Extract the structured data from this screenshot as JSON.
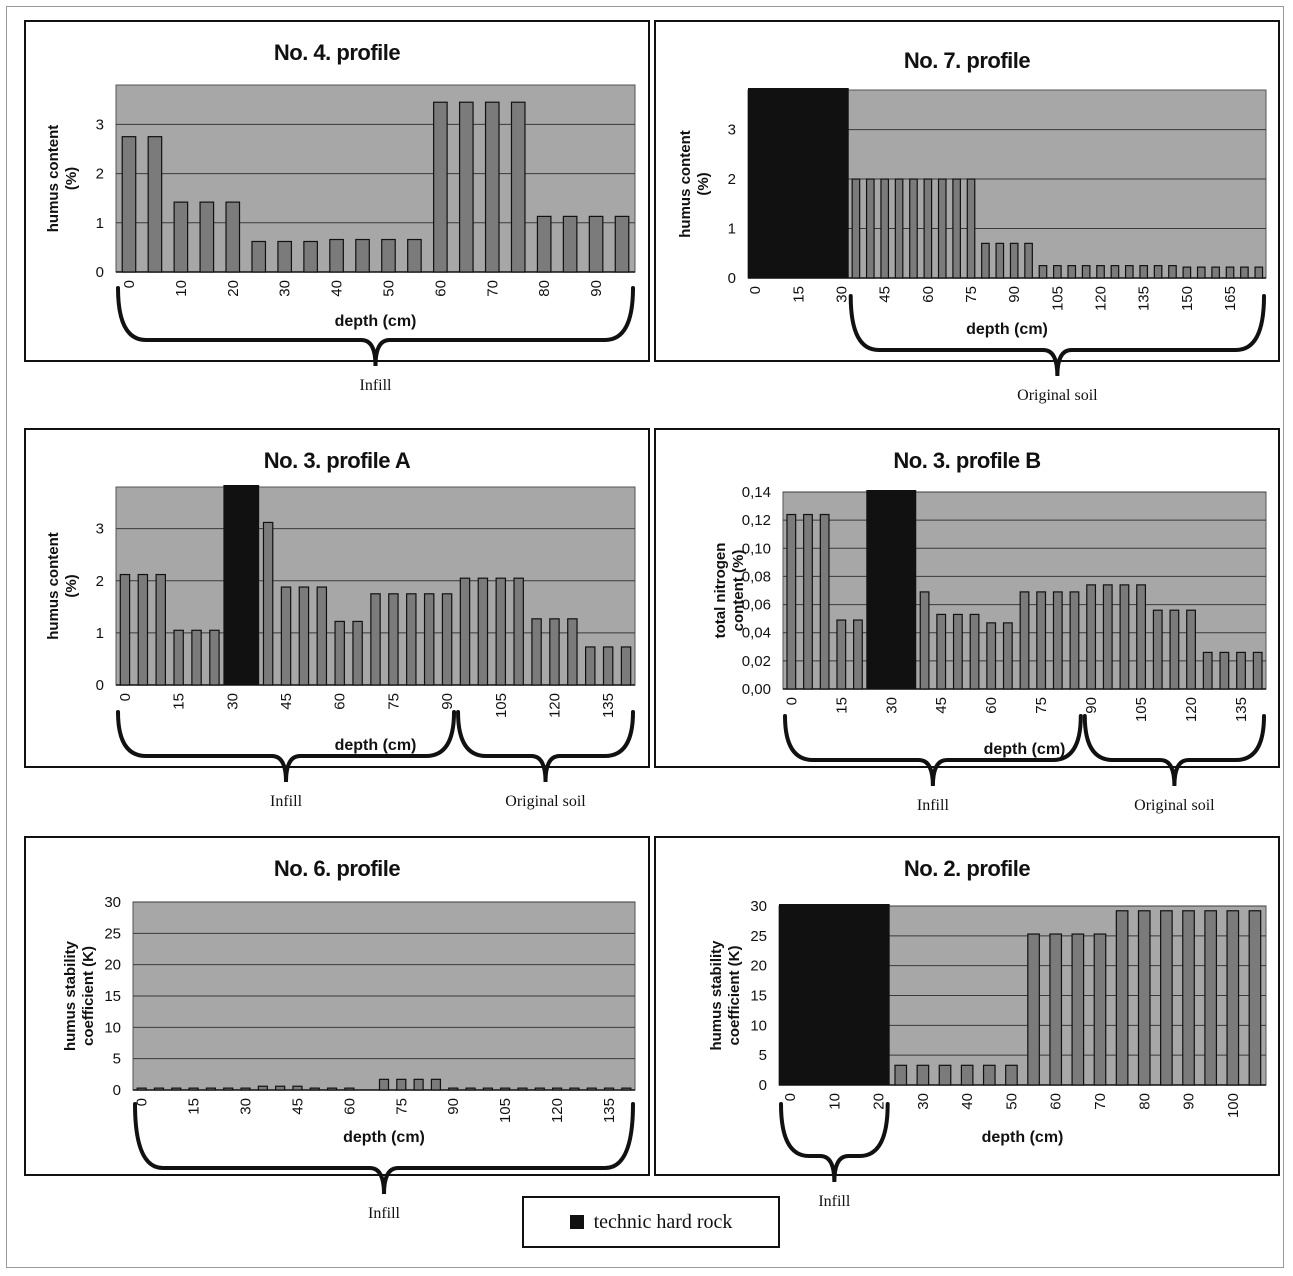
{
  "legend": {
    "label": "technic hard rock",
    "color": "#111111"
  },
  "colors": {
    "plot_bg": "#a7a7a7",
    "bar": "#7b7b7b",
    "bar_edge": "#111111",
    "rock": "#111111",
    "grid": "#3a3a3a"
  },
  "chart_data": [
    {
      "type": "bar",
      "title": "No. 4. profile",
      "xlabel": "depth (cm)",
      "ylabel": [
        "humus content",
        "(%)"
      ],
      "ylim": [
        0,
        3.8
      ],
      "yticks": [
        0,
        1,
        2,
        3
      ],
      "ytick_labels": [
        "0",
        "1",
        "2",
        "3"
      ],
      "categories": [
        0,
        5,
        10,
        15,
        20,
        25,
        30,
        35,
        40,
        45,
        50,
        55,
        60,
        65,
        70,
        75,
        80,
        85,
        90,
        95
      ],
      "xtick_labels": [
        "0",
        "",
        "10",
        "",
        "20",
        "",
        "30",
        "",
        "40",
        "",
        "50",
        "",
        "60",
        "",
        "70",
        "",
        "80",
        "",
        "90",
        ""
      ],
      "values": [
        2.75,
        2.75,
        1.42,
        1.42,
        1.42,
        0.62,
        0.62,
        0.62,
        0.66,
        0.66,
        0.66,
        0.66,
        3.45,
        3.45,
        3.45,
        3.45,
        1.13,
        1.13,
        1.13,
        1.13
      ],
      "rock": [],
      "brackets": [
        {
          "label": "Infill",
          "from": 0,
          "to": 19
        }
      ]
    },
    {
      "type": "bar",
      "title": "No. 7. profile",
      "xlabel": "depth (cm)",
      "ylabel": [
        "humus content",
        "(%)"
      ],
      "ylim": [
        0,
        3.8
      ],
      "yticks": [
        0,
        1,
        2,
        3
      ],
      "ytick_labels": [
        "0",
        "1",
        "2",
        "3"
      ],
      "categories": [
        0,
        5,
        10,
        15,
        20,
        25,
        30,
        35,
        40,
        45,
        50,
        55,
        60,
        65,
        70,
        75,
        80,
        85,
        90,
        95,
        100,
        105,
        110,
        115,
        120,
        125,
        130,
        135,
        140,
        145,
        150,
        155,
        160,
        165,
        170,
        175
      ],
      "xtick_labels": [
        "0",
        "",
        "",
        "15",
        "",
        "",
        "30",
        "",
        "",
        "45",
        "",
        "",
        "60",
        "",
        "",
        "75",
        "",
        "",
        "90",
        "",
        "",
        "105",
        "",
        "",
        "120",
        "",
        "",
        "135",
        "",
        "",
        "150",
        "",
        "",
        "165",
        "",
        ""
      ],
      "values": [
        null,
        null,
        null,
        null,
        null,
        null,
        null,
        2.0,
        2.0,
        2.0,
        2.0,
        2.0,
        2.0,
        2.0,
        2.0,
        2.0,
        0.7,
        0.7,
        0.7,
        0.7,
        0.25,
        0.25,
        0.25,
        0.25,
        0.25,
        0.25,
        0.25,
        0.25,
        0.25,
        0.25,
        0.22,
        0.22,
        0.22,
        0.22,
        0.22,
        0.22
      ],
      "rock": [
        [
          0,
          6
        ]
      ],
      "brackets": [
        {
          "label": "Original soil",
          "from": 7,
          "to": 35
        }
      ]
    },
    {
      "type": "bar",
      "title": "No. 3. profile A",
      "xlabel": "depth (cm)",
      "ylabel": [
        "humus content",
        "(%)"
      ],
      "ylim": [
        0,
        3.8
      ],
      "yticks": [
        0,
        1,
        2,
        3
      ],
      "ytick_labels": [
        "0",
        "1",
        "2",
        "3"
      ],
      "categories": [
        0,
        5,
        10,
        15,
        20,
        25,
        30,
        35,
        40,
        45,
        50,
        55,
        60,
        65,
        70,
        75,
        80,
        85,
        90,
        95,
        100,
        105,
        110,
        115,
        120,
        125,
        130,
        135,
        140
      ],
      "xtick_labels": [
        "0",
        "",
        "",
        "15",
        "",
        "",
        "30",
        "",
        "",
        "45",
        "",
        "",
        "60",
        "",
        "",
        "75",
        "",
        "",
        "90",
        "",
        "",
        "105",
        "",
        "",
        "120",
        "",
        "",
        "135",
        "",
        ""
      ],
      "values": [
        2.12,
        2.12,
        2.12,
        1.05,
        1.05,
        1.05,
        null,
        null,
        3.12,
        1.88,
        1.88,
        1.88,
        1.22,
        1.22,
        1.75,
        1.75,
        1.75,
        1.75,
        1.75,
        2.05,
        2.05,
        2.05,
        2.05,
        1.27,
        1.27,
        1.27,
        0.73,
        0.73,
        0.73
      ],
      "rock": [
        [
          6,
          7
        ]
      ],
      "brackets": [
        {
          "label": "Infill",
          "from": 0,
          "to": 18
        },
        {
          "label": "Original soil",
          "from": 19,
          "to": 28
        }
      ]
    },
    {
      "type": "bar",
      "title": "No. 3. profile B",
      "xlabel": "depth (cm)",
      "ylabel": [
        "total nitrogen",
        "content (%)"
      ],
      "ylim": [
        0,
        0.14
      ],
      "yticks": [
        0,
        0.02,
        0.04,
        0.06,
        0.08,
        0.1,
        0.12,
        0.14
      ],
      "ytick_labels": [
        "0,00",
        "0,02",
        "0,04",
        "0,06",
        "0,08",
        "0,10",
        "0,12",
        "0,14"
      ],
      "categories": [
        0,
        5,
        10,
        15,
        20,
        25,
        30,
        35,
        40,
        45,
        50,
        55,
        60,
        65,
        70,
        75,
        80,
        85,
        90,
        95,
        100,
        105,
        110,
        115,
        120,
        125,
        130,
        135,
        140
      ],
      "xtick_labels": [
        "0",
        "",
        "",
        "15",
        "",
        "",
        "30",
        "",
        "",
        "45",
        "",
        "",
        "60",
        "",
        "",
        "75",
        "",
        "",
        "90",
        "",
        "",
        "105",
        "",
        "",
        "120",
        "",
        "",
        "135",
        "",
        ""
      ],
      "values": [
        0.124,
        0.124,
        0.124,
        0.049,
        0.049,
        null,
        null,
        null,
        0.069,
        0.053,
        0.053,
        0.053,
        0.047,
        0.047,
        0.069,
        0.069,
        0.069,
        0.069,
        0.074,
        0.074,
        0.074,
        0.074,
        0.056,
        0.056,
        0.056,
        0.026,
        0.026,
        0.026,
        0.026
      ],
      "rock": [
        [
          5,
          7
        ]
      ],
      "brackets": [
        {
          "label": "Infill",
          "from": 0,
          "to": 17
        },
        {
          "label": "Original soil",
          "from": 18,
          "to": 28
        }
      ]
    },
    {
      "type": "bar",
      "title": "No. 6. profile",
      "xlabel": "depth (cm)",
      "ylabel": [
        "humus stability",
        "coefficient (K)"
      ],
      "ylim": [
        0,
        30
      ],
      "yticks": [
        0,
        5,
        10,
        15,
        20,
        25,
        30
      ],
      "ytick_labels": [
        "0",
        "5",
        "10",
        "15",
        "20",
        "25",
        "30"
      ],
      "categories": [
        0,
        5,
        10,
        15,
        20,
        25,
        30,
        35,
        40,
        45,
        50,
        55,
        60,
        65,
        70,
        75,
        80,
        85,
        90,
        95,
        100,
        105,
        110,
        115,
        120,
        125,
        130,
        135,
        140
      ],
      "xtick_labels": [
        "0",
        "",
        "",
        "15",
        "",
        "",
        "30",
        "",
        "",
        "45",
        "",
        "",
        "60",
        "",
        "",
        "75",
        "",
        "",
        "90",
        "",
        "",
        "105",
        "",
        "",
        "120",
        "",
        "",
        "135",
        "",
        ""
      ],
      "values": [
        0.3,
        0.3,
        0.3,
        0.3,
        0.3,
        0.3,
        0.3,
        0.6,
        0.6,
        0.6,
        0.3,
        0.3,
        0.3,
        null,
        1.7,
        1.7,
        1.7,
        1.7,
        0.3,
        0.3,
        0.3,
        0.3,
        0.3,
        0.3,
        0.3,
        0.3,
        0.3,
        0.3,
        0.3
      ],
      "rock": [],
      "brackets": [
        {
          "label": "Infill",
          "from": 0,
          "to": 28
        }
      ]
    },
    {
      "type": "bar",
      "title": "No. 2. profile",
      "xlabel": "depth (cm)",
      "ylabel": [
        "humus stability",
        "coefficient (K)"
      ],
      "ylim": [
        0,
        30
      ],
      "yticks": [
        0,
        5,
        10,
        15,
        20,
        25,
        30
      ],
      "ytick_labels": [
        "0",
        "5",
        "10",
        "15",
        "20",
        "25",
        "30"
      ],
      "categories": [
        0,
        5,
        10,
        15,
        20,
        25,
        30,
        35,
        40,
        45,
        50,
        55,
        60,
        65,
        70,
        75,
        80,
        85,
        90,
        95,
        100,
        105
      ],
      "xtick_labels": [
        "0",
        "",
        "10",
        "",
        "20",
        "",
        "30",
        "",
        "40",
        "",
        "50",
        "",
        "60",
        "",
        "70",
        "",
        "80",
        "",
        "90",
        "",
        "100",
        ""
      ],
      "values": [
        null,
        null,
        null,
        null,
        null,
        3.3,
        3.3,
        3.3,
        3.3,
        3.3,
        3.3,
        25.3,
        25.3,
        25.3,
        25.3,
        29.2,
        29.2,
        29.2,
        29.2,
        29.2,
        29.2,
        29.2
      ],
      "rock": [
        [
          0,
          4
        ]
      ],
      "brackets": [
        {
          "label": "Infill",
          "from": 0,
          "to": 4
        }
      ]
    }
  ]
}
